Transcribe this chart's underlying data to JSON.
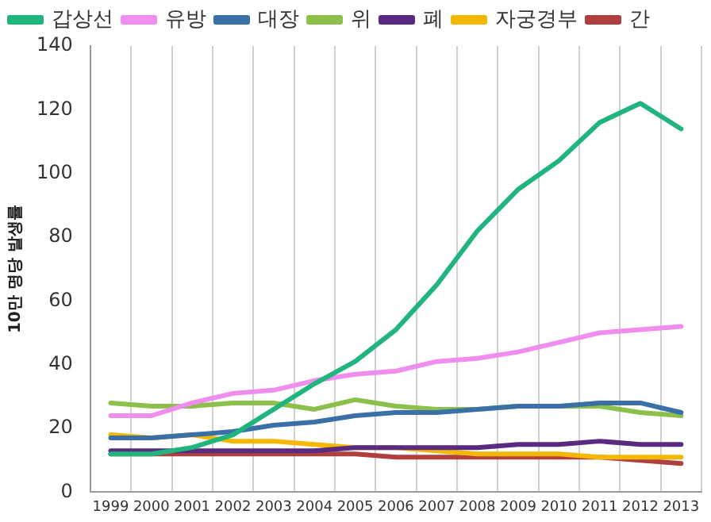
{
  "chart_data": {
    "type": "line",
    "ylabel": "10만 명당 발생률",
    "categories": [
      "1999",
      "2000",
      "2001",
      "2002",
      "2003",
      "2004",
      "2005",
      "2006",
      "2007",
      "2008",
      "2009",
      "2010",
      "2011",
      "2012",
      "2013"
    ],
    "series": [
      {
        "name": "갑상선",
        "color": "#1fb57c",
        "values": [
          12,
          12,
          14,
          18,
          26,
          34,
          41,
          51,
          65,
          82,
          95,
          104,
          116,
          122,
          114
        ]
      },
      {
        "name": "유방",
        "color": "#f08ef0",
        "values": [
          24,
          24,
          28,
          31,
          32,
          35,
          37,
          38,
          41,
          42,
          44,
          47,
          50,
          51,
          52
        ]
      },
      {
        "name": "대장",
        "color": "#3a6fa8",
        "values": [
          17,
          17,
          18,
          19,
          21,
          22,
          24,
          25,
          25,
          26,
          27,
          27,
          28,
          28,
          25
        ]
      },
      {
        "name": "위",
        "color": "#8cc04a",
        "values": [
          28,
          27,
          27,
          28,
          28,
          26,
          29,
          27,
          26,
          26,
          27,
          27,
          27,
          25,
          24
        ]
      },
      {
        "name": "폐",
        "color": "#5a2a82",
        "values": [
          13,
          13,
          13,
          13,
          13,
          13,
          14,
          14,
          14,
          14,
          15,
          15,
          16,
          15,
          15
        ]
      },
      {
        "name": "자궁경부",
        "color": "#f5b800",
        "values": [
          18,
          17,
          18,
          16,
          16,
          15,
          14,
          14,
          13,
          12,
          12,
          12,
          11,
          11,
          11
        ]
      },
      {
        "name": "간",
        "color": "#b04040",
        "values": [
          12,
          12,
          12,
          12,
          12,
          12,
          12,
          11,
          11,
          11,
          11,
          11,
          11,
          10,
          9
        ]
      }
    ],
    "ylim": [
      0,
      140
    ],
    "yticks": [
      0,
      20,
      40,
      60,
      80,
      100,
      120,
      140
    ],
    "grid": "x",
    "legend": "top",
    "marker": "none",
    "line_style": "solid"
  }
}
